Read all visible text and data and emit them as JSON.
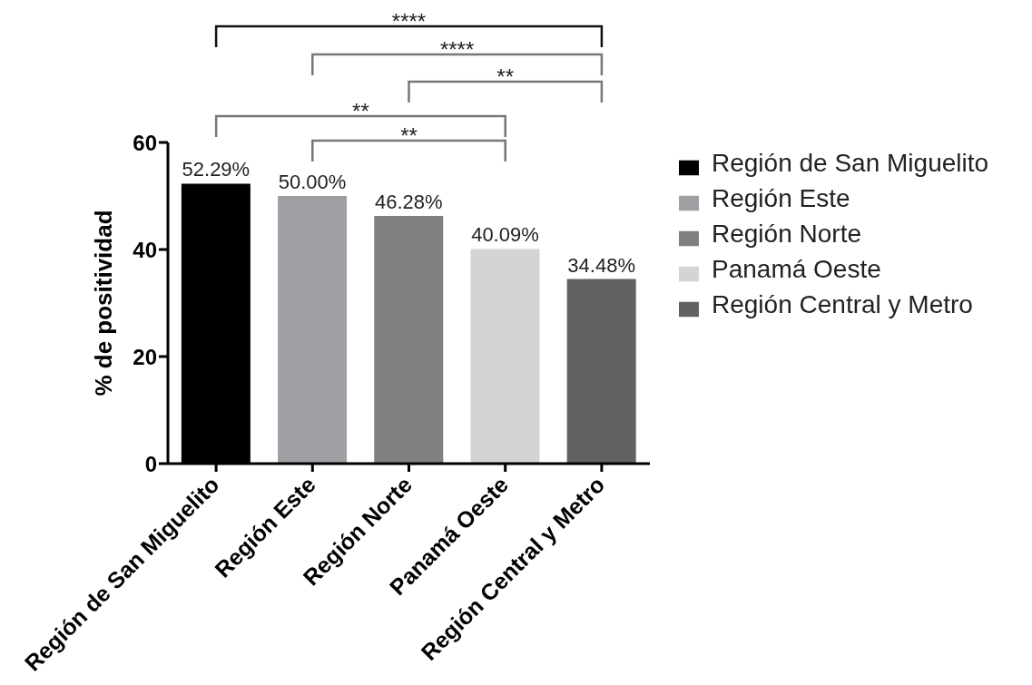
{
  "chart_data": {
    "type": "bar",
    "stacked": true,
    "categories": [
      "Región de San Miguelito",
      "Región Este",
      "Región Norte",
      "Panamá Oeste",
      "Región Central y Metro"
    ],
    "series": [
      {
        "name": "Región de San Miguelito",
        "color": "#000000",
        "values": [
          52.29,
          null,
          null,
          null,
          null
        ],
        "value_labels": [
          "52.29%",
          null,
          null,
          null,
          null
        ]
      },
      {
        "name": "Región Este",
        "color": "#a0a0a4",
        "values": [
          null,
          50.0,
          null,
          null,
          null
        ],
        "value_labels": [
          null,
          "50.00%",
          null,
          null,
          null
        ]
      },
      {
        "name": "Región Norte",
        "color": "#808080",
        "values": [
          null,
          null,
          46.28,
          null,
          null
        ],
        "value_labels": [
          null,
          null,
          "46.28%",
          null,
          null
        ]
      },
      {
        "name": "Panamá Oeste",
        "color": "#d4d4d4",
        "values": [
          null,
          null,
          null,
          40.09,
          null
        ],
        "value_labels": [
          null,
          null,
          null,
          "40.09%",
          null
        ]
      },
      {
        "name": "Región Central y Metro",
        "color": "#616161",
        "values": [
          null,
          null,
          null,
          null,
          34.48
        ],
        "value_labels": [
          null,
          null,
          null,
          null,
          "34.48%"
        ]
      }
    ],
    "ylabel": "% de positividad",
    "ylim": [
      0,
      60
    ],
    "yticks": [
      0,
      20,
      40,
      60
    ],
    "legend": "right",
    "annotations": [
      "****",
      "****",
      "**",
      "**",
      "**"
    ]
  }
}
